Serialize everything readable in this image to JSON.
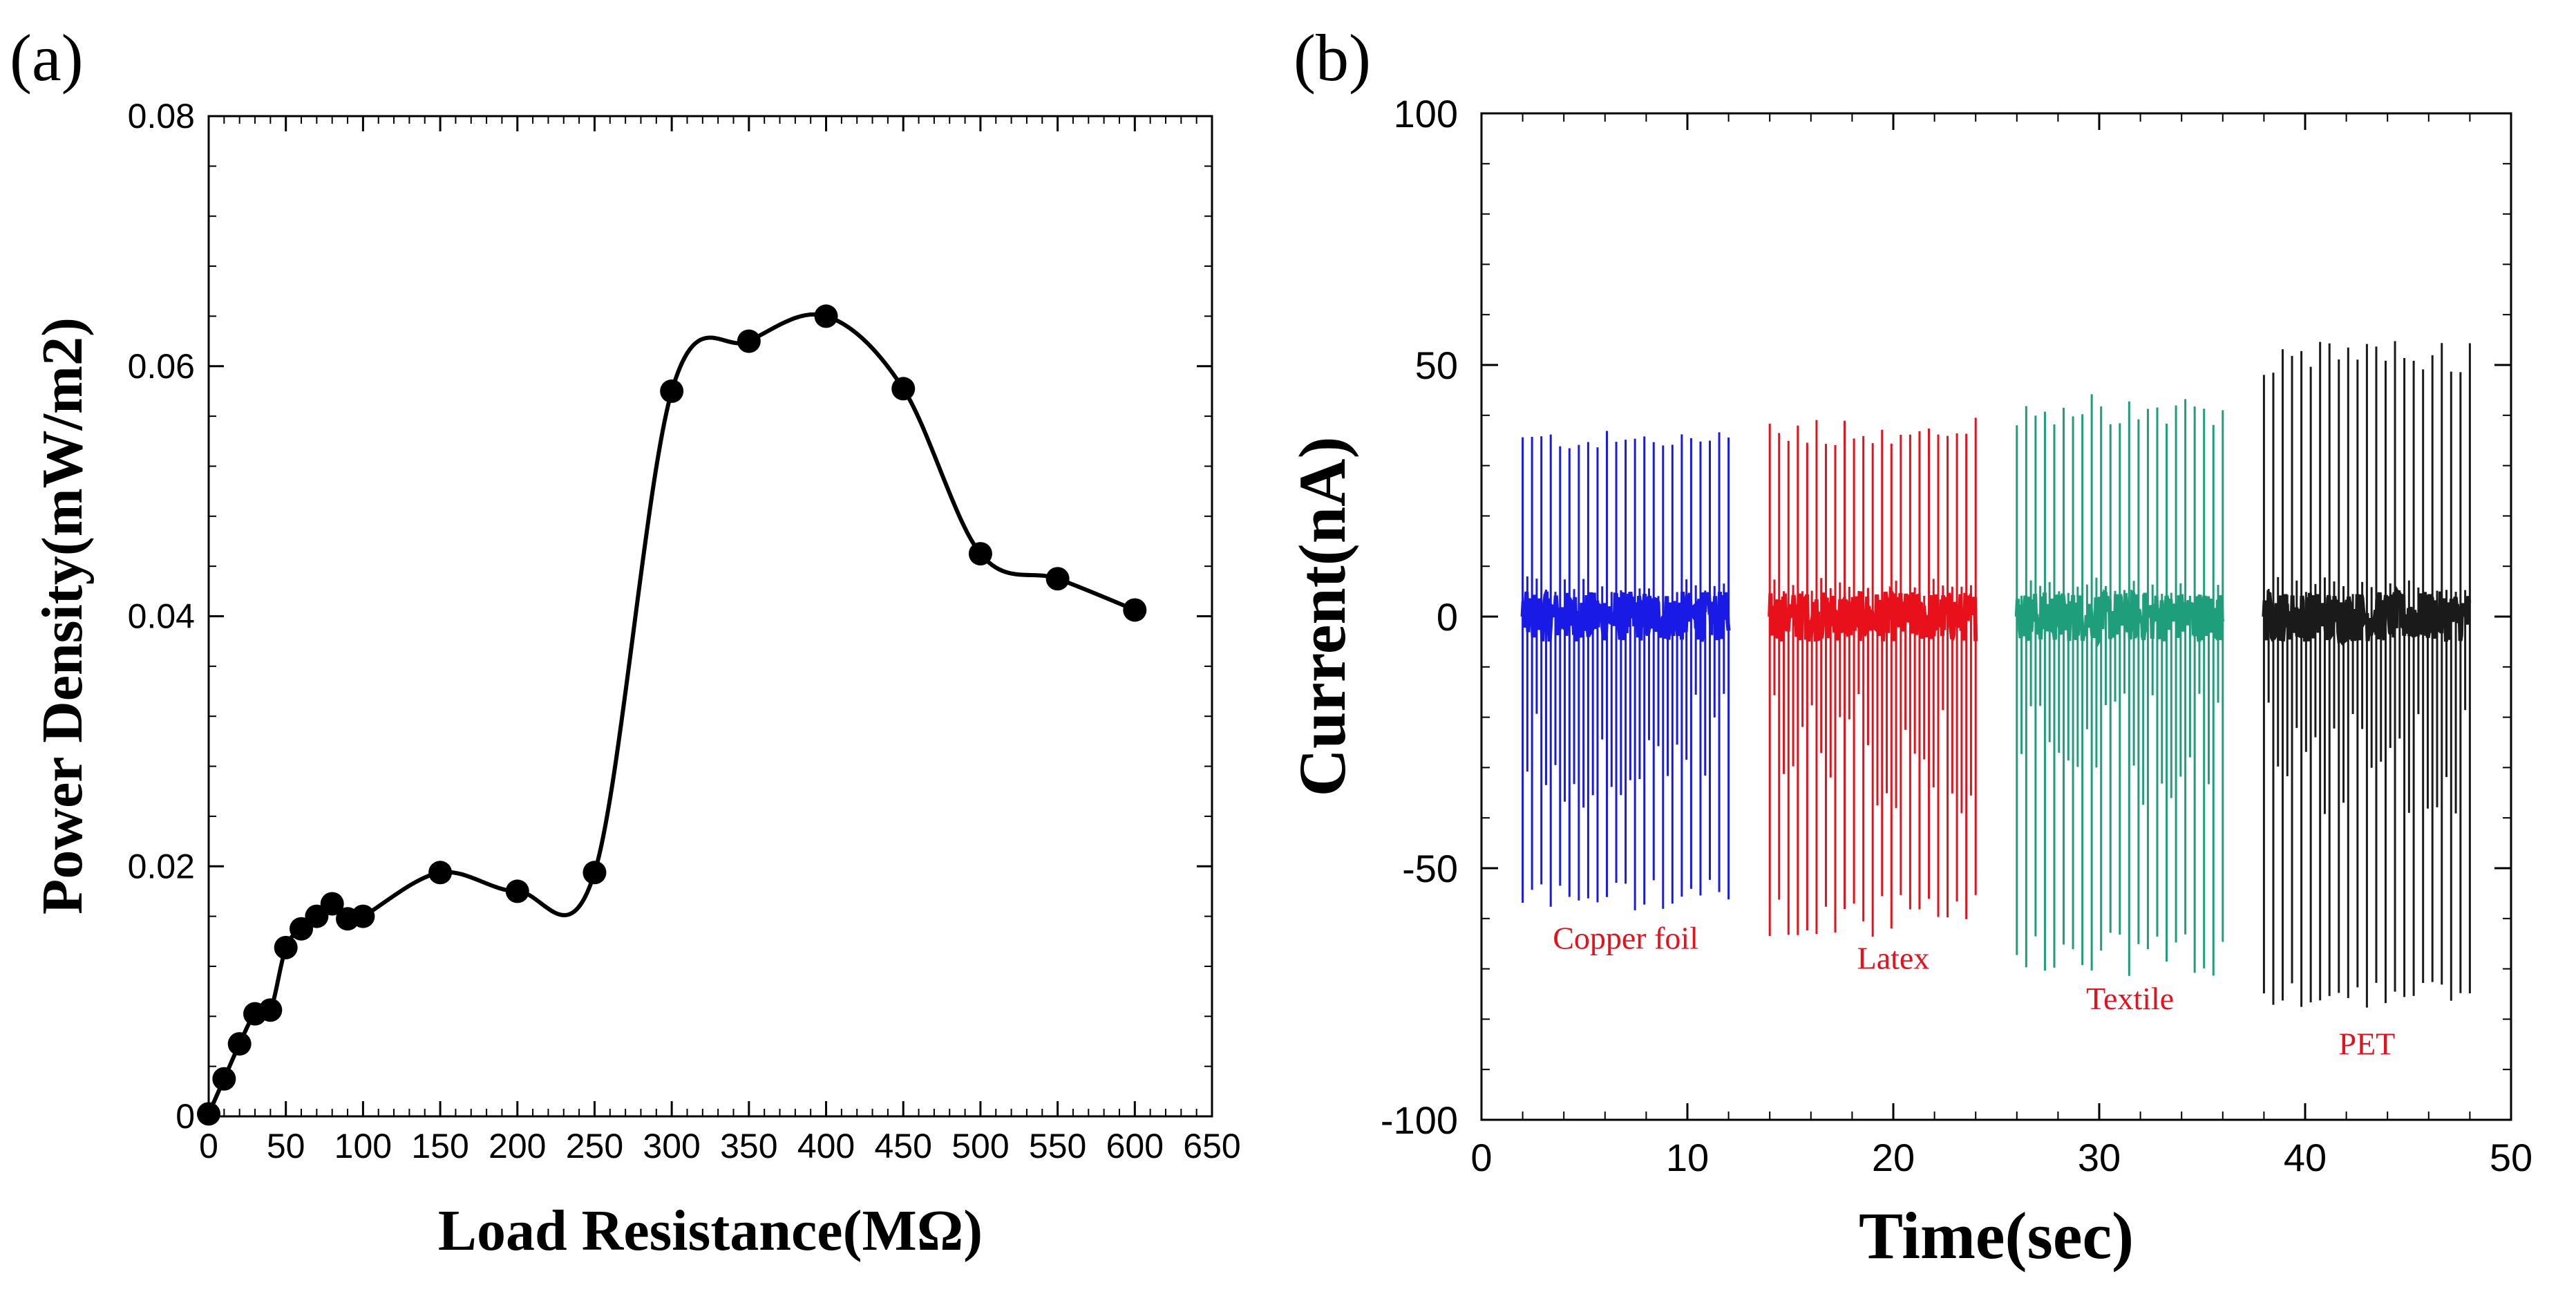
{
  "chart_data": [
    {
      "panel_label": "(a)",
      "type": "line",
      "xlabel": "Load Resistance(MΩ)",
      "ylabel": "Power Density(mW/m2)",
      "xlim": [
        0,
        650
      ],
      "ylim": [
        0,
        0.08
      ],
      "xticks": [
        "0",
        "50",
        "100",
        "150",
        "200",
        "250",
        "300",
        "350",
        "400",
        "450",
        "500",
        "550",
        "600",
        "650"
      ],
      "yticks": [
        "0",
        "0.02",
        "0.04",
        "0.06",
        "0.08"
      ],
      "grid": false,
      "series": [
        {
          "name": "Power Density",
          "color": "#000000",
          "markers": "filled-circle",
          "x": [
            0,
            10,
            20,
            30,
            40,
            50,
            60,
            70,
            80,
            90,
            100,
            150,
            200,
            250,
            300,
            350,
            400,
            450,
            500,
            550,
            600
          ],
          "y": [
            0.0002,
            0.003,
            0.0058,
            0.0082,
            0.0085,
            0.0135,
            0.015,
            0.016,
            0.017,
            0.0158,
            0.016,
            0.0195,
            0.018,
            0.0195,
            0.058,
            0.062,
            0.064,
            0.0582,
            0.045,
            0.043,
            0.0405
          ]
        }
      ]
    },
    {
      "panel_label": "(b)",
      "type": "line",
      "xlabel": "Time(sec)",
      "ylabel": "Current(nA)",
      "xlim": [
        0,
        50
      ],
      "ylim": [
        -100,
        100
      ],
      "xticks": [
        "0",
        "10",
        "20",
        "30",
        "40",
        "50"
      ],
      "yticks": [
        "-100",
        "-50",
        "0",
        "50",
        "100"
      ],
      "grid": false,
      "series": [
        {
          "name": "Copper foil",
          "color": "#1a1ae6",
          "t_start": 2,
          "t_end": 12,
          "peaks": 23,
          "max": [
            33,
            37
          ],
          "min": [
            -59,
            -52
          ],
          "label_pos": [
            7,
            -66
          ]
        },
        {
          "name": "Latex",
          "color": "#e8101a",
          "t_start": 14,
          "t_end": 24,
          "peaks": 23,
          "max": [
            34,
            40
          ],
          "min": [
            -64,
            -55
          ],
          "label_pos": [
            20,
            -70
          ]
        },
        {
          "name": "Textile",
          "color": "#1e9e7a",
          "t_start": 26,
          "t_end": 36,
          "peaks": 23,
          "max": [
            38,
            45
          ],
          "min": [
            -72,
            -62
          ],
          "label_pos": [
            31.5,
            -78
          ]
        },
        {
          "name": "PET",
          "color": "#1a1a1a",
          "t_start": 38,
          "t_end": 48,
          "peaks": 23,
          "max": [
            48,
            55
          ],
          "min": [
            -78,
            -72
          ],
          "label_pos": [
            43,
            -87
          ]
        }
      ]
    }
  ]
}
